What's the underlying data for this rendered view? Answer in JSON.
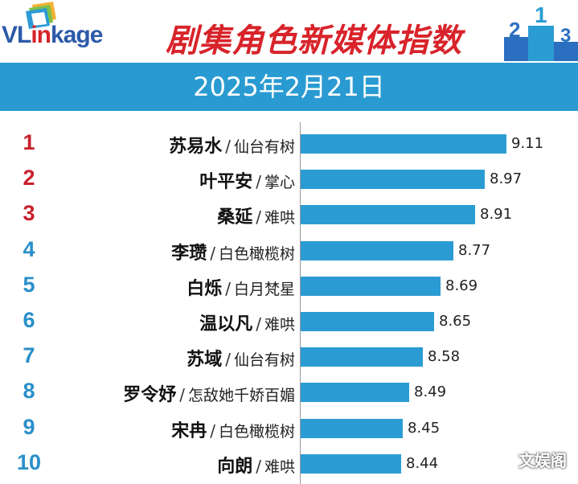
{
  "brand": {
    "logo_main": "VL",
    "logo_accent": "in",
    "logo_rest": "kage"
  },
  "header": {
    "title": "剧集角色新媒体指数",
    "podium_numbers": [
      "2",
      "1",
      "3"
    ]
  },
  "date": "2025年2月21日",
  "colors": {
    "bar": "#2b9cd3",
    "header_band": "#2a9bd2",
    "rank_top": "#c8202c",
    "rank_rest": "#2a8fca",
    "title": "#d8232a"
  },
  "chart_data": {
    "type": "bar",
    "orientation": "horizontal",
    "title": "剧集角色新媒体指数",
    "subtitle": "2025年2月21日",
    "xlim": [
      0,
      9.11
    ],
    "rows": [
      {
        "rank": "1",
        "character": "苏易水",
        "drama": "仙台有树",
        "value": 9.11,
        "value_label": "9.11"
      },
      {
        "rank": "2",
        "character": "叶平安",
        "drama": "掌心",
        "value": 8.97,
        "value_label": "8.97"
      },
      {
        "rank": "3",
        "character": "桑延",
        "drama": "难哄",
        "value": 8.91,
        "value_label": "8.91"
      },
      {
        "rank": "4",
        "character": "李瓒",
        "drama": "白色橄榄树",
        "value": 8.77,
        "value_label": "8.77"
      },
      {
        "rank": "5",
        "character": "白烁",
        "drama": "白月梵星",
        "value": 8.69,
        "value_label": "8.69"
      },
      {
        "rank": "6",
        "character": "温以凡",
        "drama": "难哄",
        "value": 8.65,
        "value_label": "8.65"
      },
      {
        "rank": "7",
        "character": "苏域",
        "drama": "仙台有树",
        "value": 8.58,
        "value_label": "8.58"
      },
      {
        "rank": "8",
        "character": "罗令妤",
        "drama": "怎敌她千娇百媚",
        "value": 8.49,
        "value_label": "8.49"
      },
      {
        "rank": "9",
        "character": "宋冉",
        "drama": "白色橄榄树",
        "value": 8.45,
        "value_label": "8.45"
      },
      {
        "rank": "10",
        "character": "向朗",
        "drama": "难哄",
        "value": 8.44,
        "value_label": "8.44"
      }
    ]
  },
  "watermark": "文娱阁"
}
